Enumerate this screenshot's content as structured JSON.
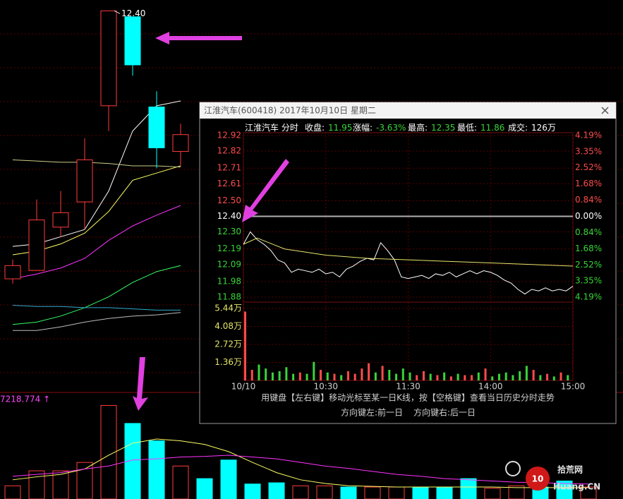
{
  "chart_data": [
    {
      "type": "candlestick",
      "categories": [
        null,
        null,
        null,
        null,
        null,
        null,
        null,
        null
      ],
      "open": [
        10.17,
        10.24,
        10.6,
        10.81,
        11.61,
        12.35,
        11.6,
        11.23
      ],
      "high": [
        10.33,
        10.83,
        10.9,
        11.34,
        12.4,
        12.35,
        11.73,
        11.46
      ],
      "low": [
        10.13,
        10.24,
        10.52,
        10.58,
        11.4,
        11.86,
        11.09,
        11.11
      ],
      "close": [
        10.28,
        10.66,
        10.72,
        11.16,
        12.4,
        11.95,
        11.26,
        11.37
      ],
      "annotation": "12.40",
      "ylim": [
        9.26,
        12.49
      ],
      "up_color": "#ff3c3c",
      "down_color": "#00ffff",
      "lines": [
        {
          "color": "#ffffff",
          "values": [
            10.44,
            10.46,
            10.52,
            10.58,
            10.9,
            11.4,
            11.61,
            11.65
          ]
        },
        {
          "color": "#ffff66",
          "values": [
            10.37,
            10.4,
            10.46,
            10.55,
            10.73,
            10.99,
            11.05,
            11.11
          ]
        },
        {
          "color": "#ff33ff",
          "values": [
            10.17,
            10.21,
            10.26,
            10.34,
            10.49,
            10.61,
            10.7,
            10.78
          ]
        },
        {
          "color": "#33ff66",
          "values": [
            9.79,
            9.81,
            9.86,
            9.93,
            10.02,
            10.14,
            10.23,
            10.28
          ]
        },
        {
          "color": "#33aacc",
          "values": [
            9.95,
            9.94,
            9.94,
            9.93,
            9.93,
            9.92,
            9.91,
            9.91
          ]
        },
        {
          "color": "#bbbbbb",
          "values": [
            9.74,
            9.74,
            9.77,
            9.81,
            9.84,
            9.86,
            9.87,
            9.89
          ]
        },
        {
          "color": "#cccc88",
          "values": [
            11.16,
            11.15,
            11.14,
            11.14,
            11.13,
            11.11,
            11.11,
            11.1
          ]
        }
      ]
    },
    {
      "type": "bar",
      "label": "7218.774 ↑",
      "categories": [
        null,
        null,
        null,
        null,
        null,
        null,
        null,
        null,
        null,
        null,
        null,
        null,
        null,
        null,
        null,
        null,
        null,
        null,
        null,
        null,
        null,
        null,
        null,
        null,
        null
      ],
      "values": [
        22,
        47,
        47,
        61,
        156,
        126,
        97,
        55,
        34,
        65,
        25,
        27,
        22,
        22,
        20,
        20,
        20,
        20,
        20,
        34,
        18,
        22,
        20,
        30,
        20
      ],
      "colors": [
        "#ff3c3c",
        "#ff3c3c",
        "#ff3c3c",
        "#ff3c3c",
        "#ff3c3c",
        "#00ffff",
        "#00ffff",
        "#ff3c3c",
        "#00ffff",
        "#00ffff",
        "#00ffff",
        "#00ffff",
        "#ff3c3c",
        "#ff3c3c",
        "#00ffff",
        "#ff3c3c",
        "#ff3c3c",
        "#00ffff",
        "#00ffff",
        "#00ffff",
        "#ff3c3c",
        "#ff3c3c",
        "#00ffff",
        "#00ffff",
        "#ff3c3c"
      ],
      "ylim": [
        0,
        173
      ],
      "lines": [
        {
          "color": "#ffff66",
          "values": [
            32,
            37,
            41,
            50,
            73,
            93,
            100,
            97,
            91,
            79,
            61,
            44,
            32,
            26,
            22,
            21,
            20,
            20,
            20,
            20,
            20,
            19,
            19,
            19,
            19
          ]
        },
        {
          "color": "#ff33ff",
          "values": [
            38,
            41,
            44,
            50,
            55,
            65,
            67,
            70,
            71,
            73,
            70,
            67,
            61,
            55,
            51,
            46,
            41,
            38,
            34,
            32,
            30,
            28,
            27,
            26,
            25
          ]
        }
      ]
    },
    {
      "type": "line",
      "x": [
        0,
        5,
        10,
        15,
        20,
        25,
        30,
        35,
        40,
        45,
        50,
        55,
        60,
        65,
        70,
        75,
        80,
        85,
        90,
        95,
        100,
        105,
        110,
        115,
        120,
        125,
        130,
        135,
        140,
        145,
        150,
        155,
        160,
        165,
        170,
        175,
        180,
        185,
        190,
        195,
        200,
        205,
        210,
        215,
        220,
        225,
        230,
        235,
        240
      ],
      "series": [
        {
          "color": "#ffffff",
          "values": [
            12.22,
            12.3,
            12.25,
            12.22,
            12.18,
            12.12,
            12.1,
            12.04,
            12.06,
            12.05,
            12.04,
            12.06,
            12.03,
            12.04,
            12.01,
            12.06,
            12.08,
            12.11,
            12.13,
            12.12,
            12.23,
            12.18,
            12.12,
            12.01,
            12.0,
            12.01,
            12.02,
            12.0,
            12.03,
            12.02,
            12.04,
            12.01,
            12.03,
            12.05,
            12.03,
            12.05,
            12.04,
            12.02,
            11.99,
            11.97,
            11.93,
            11.9,
            11.93,
            11.92,
            11.94,
            11.92,
            11.93,
            11.92,
            11.95
          ]
        },
        {
          "color": "#e6e66a",
          "x": [
            0,
            10,
            30,
            60,
            90,
            120,
            150,
            180,
            210,
            240
          ],
          "values": [
            12.22,
            12.26,
            12.19,
            12.15,
            12.13,
            12.12,
            12.11,
            12.1,
            12.09,
            12.08
          ]
        }
      ],
      "xlim": [
        0,
        240
      ],
      "xticks": [
        {
          "value": 0,
          "label": "10/10"
        },
        {
          "value": 60,
          "label": "10:30"
        },
        {
          "value": 120,
          "label": "11:30"
        },
        {
          "value": 180,
          "label": "14:00"
        },
        {
          "value": 240,
          "label": "15:00"
        }
      ],
      "ylim": [
        11.88,
        12.92
      ],
      "yticks": [
        12.92,
        12.82,
        12.71,
        12.61,
        {
          "value": 12.5,
          "label": "12.50"
        },
        {
          "value": 12.4,
          "label": "12.40"
        },
        {
          "value": 12.3,
          "label": "12.30"
        },
        12.19,
        12.09,
        11.98,
        11.88
      ],
      "y2lim": [
        -4.19,
        4.19
      ],
      "y2ticks": [
        {
          "value": 4.19,
          "label": "4.19%"
        },
        {
          "value": 3.35,
          "label": "3.35%"
        },
        {
          "value": 2.52,
          "label": "2.52%"
        },
        {
          "value": 1.68,
          "label": "1.68%"
        },
        {
          "value": 0.84,
          "label": "0.84%"
        },
        {
          "value": 0,
          "label": "0.00%"
        },
        {
          "value": -0.84,
          "label": "0.84%"
        },
        {
          "value": -1.68,
          "label": "1.68%"
        },
        {
          "value": -2.52,
          "label": "2.52%"
        },
        {
          "value": -3.35,
          "label": "3.35%"
        },
        {
          "value": -4.19,
          "label": "4.19%"
        }
      ],
      "up_color": "#ff4b4b",
      "down_color": "#3ad33a",
      "grid": true
    },
    {
      "type": "bar",
      "x": [
        0,
        5,
        10,
        15,
        20,
        25,
        30,
        35,
        40,
        45,
        50,
        55,
        60,
        65,
        70,
        75,
        80,
        85,
        90,
        95,
        100,
        105,
        110,
        115,
        120,
        125,
        130,
        135,
        140,
        145,
        150,
        155,
        160,
        165,
        170,
        175,
        180,
        185,
        190,
        195,
        200,
        205,
        210,
        215,
        220,
        225,
        230,
        235
      ],
      "values": [
        52000,
        8000,
        12000,
        9000,
        6000,
        7000,
        10000,
        5000,
        6000,
        5000,
        14000,
        8000,
        6000,
        5000,
        4000,
        7000,
        5000,
        9000,
        13000,
        6000,
        11000,
        8000,
        5000,
        9000,
        6000,
        4000,
        7000,
        5000,
        4000,
        6000,
        3000,
        5000,
        4000,
        4000,
        6000,
        9000,
        3000,
        5000,
        6000,
        4000,
        7000,
        11000,
        8000,
        4000,
        5000,
        3000,
        6000,
        4000
      ],
      "xlim": [
        0,
        240
      ],
      "ylim": [
        0,
        54400
      ],
      "yticks": [
        {
          "value": 54400,
          "label": "5.44万"
        },
        {
          "value": 40800,
          "label": "4.08万"
        },
        {
          "value": 27200,
          "label": "2.72万"
        },
        {
          "value": 13600,
          "label": "1.36万"
        }
      ]
    }
  ],
  "popup": {
    "title": "江淮汽车(600418) 2017年10月10日 星期二",
    "name": "江淮汽车 分时",
    "stats": [
      {
        "label": "收盘:",
        "value": "11.95"
      },
      {
        "label": "涨幅:",
        "value": "-3.63%"
      },
      {
        "label": "最高:",
        "value": "12.35"
      },
      {
        "label": "最低:",
        "value": "11.86"
      },
      {
        "label": "成交:",
        "value": "126万"
      }
    ],
    "hint": "用键盘【左右键】移动光标至某一日K线，按【空格键】查看当日历史分时走势",
    "keys": [
      "方向键左:前一日",
      "方向键右:后一日"
    ]
  },
  "watermark": {
    "logo": "10",
    "name": "拾荒网",
    "site": "Huang.CN"
  }
}
